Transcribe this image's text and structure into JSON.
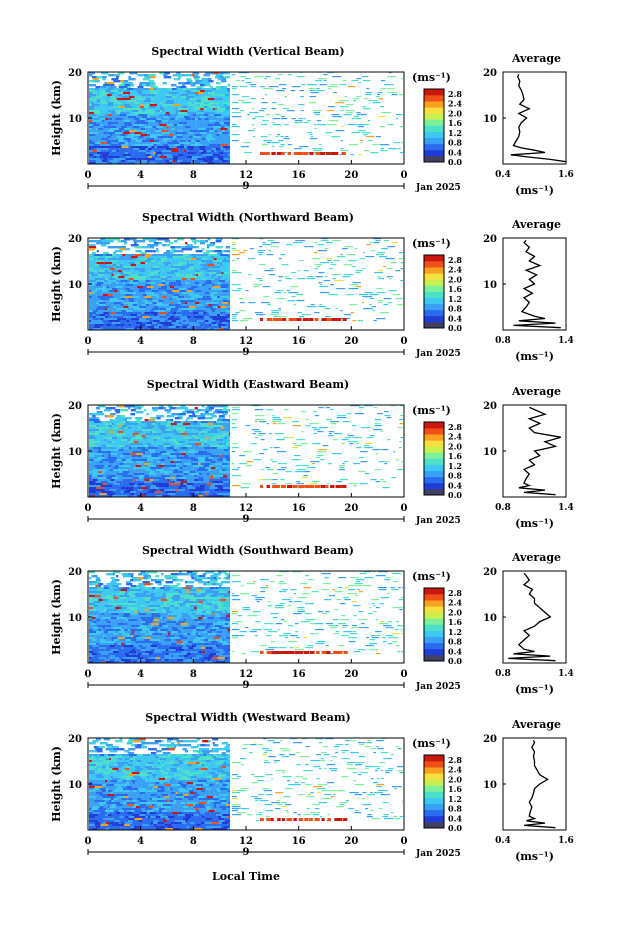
{
  "figure": {
    "x_axis_label": "Local Time",
    "date_label": "Jan 2025",
    "day_marker": "9",
    "y_axis_label": "Height (km)",
    "colorbar_unit": "(ms⁻¹)",
    "average_title": "Average",
    "average_unit": "(ms⁻¹)",
    "colors": {
      "colormap": [
        "#404060",
        "#1f3cd6",
        "#2a6cf0",
        "#3aa0f5",
        "#3cc8f0",
        "#4de0c8",
        "#7cf09a",
        "#c8f050",
        "#f5e040",
        "#f8a020",
        "#f05018",
        "#c81810"
      ],
      "outline": "#000000",
      "background": "#ffffff"
    }
  },
  "chart_data": [
    {
      "type": "heatmap",
      "title": "Spectral Width (Vertical Beam)",
      "xlabel": "",
      "ylabel": "Height (km)",
      "x_ticks": [
        "0",
        "4",
        "8",
        "12",
        "16",
        "20",
        "0"
      ],
      "y_ticks": [
        "20",
        "10"
      ],
      "xlim": [
        0,
        24
      ],
      "ylim": [
        0,
        20
      ],
      "colorbar": {
        "ticks": [
          "2.8",
          "2.4",
          "2.0",
          "1.6",
          "1.2",
          "0.8",
          "0.4",
          "0.0"
        ],
        "range": [
          0,
          3.0
        ]
      },
      "average_profile": {
        "title": "Average",
        "xlabel": "(ms⁻¹)",
        "x_ticks": [
          "0.4",
          "1.6"
        ],
        "xlim": [
          0.4,
          1.6
        ],
        "y_ticks": [
          "20",
          "10"
        ],
        "height": [
          0.5,
          1,
          1.5,
          2,
          2.5,
          3,
          3.5,
          4,
          5,
          6,
          7,
          8,
          9,
          10,
          11,
          12,
          13,
          14,
          15,
          16,
          17,
          18,
          19,
          19.5
        ],
        "value": [
          1.6,
          1.3,
          0.9,
          0.55,
          1.2,
          1.0,
          0.75,
          0.6,
          0.65,
          0.7,
          0.72,
          0.7,
          0.75,
          0.85,
          0.7,
          0.9,
          0.72,
          0.8,
          0.78,
          0.75,
          0.7,
          0.72,
          0.68,
          0.7
        ]
      }
    },
    {
      "type": "heatmap",
      "title": "Spectral Width (Northward Beam)",
      "xlabel": "",
      "ylabel": "Height (km)",
      "x_ticks": [
        "0",
        "4",
        "8",
        "12",
        "16",
        "20",
        "0"
      ],
      "y_ticks": [
        "20",
        "10"
      ],
      "xlim": [
        0,
        24
      ],
      "ylim": [
        0,
        20
      ],
      "colorbar": {
        "ticks": [
          "2.8",
          "2.4",
          "2.0",
          "1.6",
          "1.2",
          "0.8",
          "0.4",
          "0.0"
        ],
        "range": [
          0,
          3.0
        ]
      },
      "average_profile": {
        "title": "Average",
        "xlabel": "(ms⁻¹)",
        "x_ticks": [
          "0.8",
          "1.4"
        ],
        "xlim": [
          0.8,
          1.4
        ],
        "y_ticks": [
          "20",
          "10"
        ],
        "height": [
          0.5,
          1,
          1.5,
          2,
          2.5,
          3,
          4,
          5,
          6,
          7,
          8,
          9,
          10,
          11,
          12,
          13,
          14,
          15,
          16,
          17,
          18,
          19,
          19.5
        ],
        "value": [
          1.35,
          0.9,
          1.3,
          0.95,
          1.2,
          1.1,
          0.98,
          1.02,
          1.05,
          1.0,
          1.08,
          1.0,
          1.1,
          1.05,
          1.12,
          1.02,
          1.15,
          1.05,
          1.1,
          1.02,
          1.05,
          1.0,
          1.02
        ]
      }
    },
    {
      "type": "heatmap",
      "title": "Spectral Width (Eastward Beam)",
      "xlabel": "",
      "ylabel": "Height (km)",
      "x_ticks": [
        "0",
        "4",
        "8",
        "12",
        "16",
        "20",
        "0"
      ],
      "y_ticks": [
        "20",
        "10"
      ],
      "xlim": [
        0,
        24
      ],
      "ylim": [
        0,
        20
      ],
      "colorbar": {
        "ticks": [
          "2.8",
          "2.4",
          "2.0",
          "1.6",
          "1.2",
          "0.8",
          "0.4",
          "0.0"
        ],
        "range": [
          0,
          3.0
        ]
      },
      "average_profile": {
        "title": "Average",
        "xlabel": "(ms⁻¹)",
        "x_ticks": [
          "0.8",
          "1.4"
        ],
        "xlim": [
          0.8,
          1.4
        ],
        "y_ticks": [
          "20",
          "10"
        ],
        "height": [
          0.5,
          1,
          1.5,
          2,
          2.5,
          3,
          4,
          5,
          6,
          7,
          8,
          9,
          10,
          11,
          12,
          13,
          14,
          15,
          16,
          17,
          18,
          19,
          19.5
        ],
        "value": [
          1.3,
          1.0,
          1.2,
          0.95,
          1.05,
          1.0,
          1.02,
          1.05,
          1.0,
          1.1,
          1.05,
          1.15,
          1.1,
          1.3,
          1.2,
          1.35,
          1.1,
          1.05,
          1.15,
          1.05,
          1.2,
          1.1,
          1.05
        ]
      }
    },
    {
      "type": "heatmap",
      "title": "Spectral Width (Southward Beam)",
      "xlabel": "",
      "ylabel": "Height (km)",
      "x_ticks": [
        "0",
        "4",
        "8",
        "12",
        "16",
        "20",
        "0"
      ],
      "y_ticks": [
        "20",
        "10"
      ],
      "xlim": [
        0,
        24
      ],
      "ylim": [
        0,
        20
      ],
      "colorbar": {
        "ticks": [
          "2.8",
          "2.4",
          "2.0",
          "1.6",
          "1.2",
          "0.8",
          "0.4",
          "0.0"
        ],
        "range": [
          0,
          3.0
        ]
      },
      "average_profile": {
        "title": "Average",
        "xlabel": "(ms⁻¹)",
        "x_ticks": [
          "0.8",
          "1.4"
        ],
        "xlim": [
          0.8,
          1.4
        ],
        "y_ticks": [
          "20",
          "10"
        ],
        "height": [
          0.5,
          1,
          1.5,
          2,
          2.5,
          3,
          4,
          5,
          6,
          7,
          8,
          9,
          10,
          11,
          12,
          13,
          14,
          15,
          16,
          17,
          18,
          19,
          19.5
        ],
        "value": [
          1.3,
          0.85,
          1.25,
          0.9,
          1.1,
          1.0,
          0.95,
          1.0,
          1.05,
          1.0,
          1.1,
          1.15,
          1.25,
          1.2,
          1.15,
          1.1,
          1.1,
          1.05,
          1.08,
          1.0,
          1.05,
          1.02,
          1.0
        ]
      }
    },
    {
      "type": "heatmap",
      "title": "Spectral Width (Westward Beam)",
      "xlabel": "Local Time",
      "ylabel": "Height (km)",
      "x_ticks": [
        "0",
        "4",
        "8",
        "12",
        "16",
        "20",
        "0"
      ],
      "y_ticks": [
        "20",
        "10"
      ],
      "xlim": [
        0,
        24
      ],
      "ylim": [
        0,
        20
      ],
      "colorbar": {
        "ticks": [
          "2.8",
          "2.4",
          "2.0",
          "1.6",
          "1.2",
          "0.8",
          "0.4",
          "0.0"
        ],
        "range": [
          0,
          3.0
        ]
      },
      "average_profile": {
        "title": "Average",
        "xlabel": "(ms⁻¹)",
        "x_ticks": [
          "0.4",
          "1.6"
        ],
        "xlim": [
          0.4,
          1.6
        ],
        "y_ticks": [
          "20",
          "10"
        ],
        "height": [
          0.5,
          1,
          1.5,
          2,
          2.5,
          3,
          4,
          5,
          6,
          7,
          8,
          9,
          10,
          11,
          12,
          13,
          14,
          15,
          16,
          17,
          18,
          19,
          19.5
        ],
        "value": [
          1.4,
          0.8,
          1.2,
          0.85,
          1.0,
          0.9,
          0.92,
          0.95,
          0.9,
          0.95,
          0.98,
          1.0,
          1.1,
          1.25,
          1.1,
          1.05,
          1.0,
          1.0,
          0.98,
          1.0,
          0.95,
          1.0,
          0.98
        ]
      }
    }
  ]
}
